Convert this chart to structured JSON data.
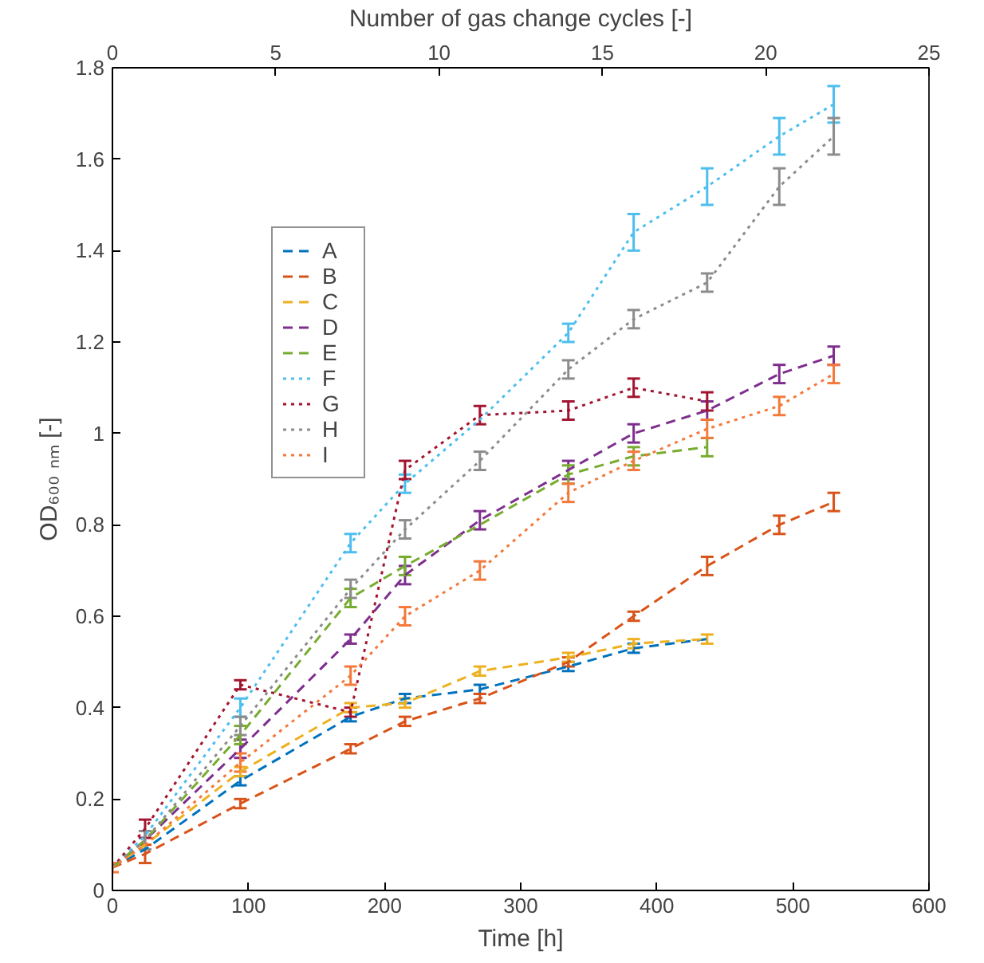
{
  "chart_data": {
    "type": "line",
    "xlabel": "Time [h]",
    "ylabel": "OD₆₀₀ ₙₘ [-]",
    "x2label": "Number of gas change cycles [-]",
    "x": [
      0,
      24,
      94,
      175,
      215,
      270,
      335,
      383,
      437,
      490,
      530
    ],
    "xlim": [
      0,
      600
    ],
    "xticks": [
      0,
      100,
      200,
      300,
      400,
      500,
      600
    ],
    "x2lim": [
      0,
      25
    ],
    "x2ticks": [
      0,
      5,
      10,
      15,
      20,
      25
    ],
    "ylim": [
      0,
      1.8
    ],
    "yticks": [
      0,
      0.2,
      0.4,
      0.6,
      0.8,
      1,
      1.2,
      1.4,
      1.6,
      1.8
    ],
    "grid": false,
    "legend": "top left",
    "marker": "none",
    "series": [
      {
        "name": "A",
        "color": "#0072bd",
        "line_style": "dashed",
        "values": [
          0.05,
          0.09,
          0.24,
          0.38,
          0.42,
          0.44,
          0.49,
          0.53,
          0.55,
          null,
          null
        ],
        "errors": [
          null,
          null,
          0.01,
          0.01,
          0.01,
          0.01,
          0.01,
          0.01,
          null,
          null,
          null
        ]
      },
      {
        "name": "B",
        "color": "#d95319",
        "line_style": "dashed",
        "values": [
          0.05,
          0.08,
          0.19,
          0.31,
          0.37,
          0.42,
          0.5,
          0.6,
          0.71,
          0.8,
          0.85
        ],
        "errors": [
          null,
          0.02,
          0.01,
          0.01,
          0.01,
          0.01,
          0.01,
          0.01,
          0.02,
          0.02,
          0.02
        ]
      },
      {
        "name": "C",
        "color": "#edb120",
        "line_style": "dashed",
        "values": [
          0.05,
          0.1,
          0.26,
          0.4,
          0.41,
          0.48,
          0.51,
          0.54,
          0.55,
          null,
          null
        ],
        "errors": [
          null,
          null,
          0.01,
          0.01,
          0.01,
          0.01,
          0.01,
          0.01,
          0.01,
          null,
          null
        ]
      },
      {
        "name": "D",
        "color": "#7e2f8e",
        "line_style": "dashed",
        "values": [
          0.05,
          0.11,
          0.31,
          0.55,
          0.69,
          0.81,
          0.92,
          1.0,
          1.05,
          1.13,
          1.17
        ],
        "errors": [
          null,
          null,
          0.02,
          0.01,
          0.02,
          0.02,
          0.02,
          0.02,
          0.02,
          0.02,
          0.02
        ]
      },
      {
        "name": "E",
        "color": "#77ac30",
        "line_style": "dashed",
        "values": [
          0.05,
          0.11,
          0.34,
          0.64,
          0.71,
          0.8,
          0.91,
          0.95,
          0.97,
          null,
          null
        ],
        "errors": [
          null,
          null,
          0.02,
          0.02,
          0.02,
          null,
          0.02,
          0.02,
          0.02,
          null,
          null
        ]
      },
      {
        "name": "F",
        "color": "#4dbeee",
        "line_style": "dotted",
        "values": [
          0.05,
          0.12,
          0.4,
          0.76,
          0.89,
          1.03,
          1.22,
          1.44,
          1.54,
          1.65,
          1.72
        ],
        "errors": [
          null,
          null,
          0.02,
          0.02,
          0.02,
          null,
          0.02,
          0.04,
          0.04,
          0.04,
          0.04
        ]
      },
      {
        "name": "G",
        "color": "#a2142f",
        "line_style": "dotted",
        "values": [
          0.05,
          0.135,
          0.45,
          0.39,
          0.92,
          1.04,
          1.05,
          1.1,
          1.07,
          null,
          null
        ],
        "errors": [
          null,
          0.02,
          0.01,
          0.01,
          0.02,
          0.02,
          0.02,
          0.02,
          0.02,
          null,
          null
        ]
      },
      {
        "name": "H",
        "color": "#8c8c8c",
        "line_style": "dotted",
        "values": [
          0.05,
          0.11,
          0.36,
          0.66,
          0.79,
          0.94,
          1.14,
          1.25,
          1.33,
          1.54,
          1.65
        ],
        "errors": [
          null,
          0.02,
          0.02,
          0.02,
          0.02,
          0.02,
          0.02,
          0.02,
          0.02,
          0.04,
          0.04
        ]
      },
      {
        "name": "I",
        "color": "#f4793b",
        "line_style": "dotted",
        "values": [
          0.05,
          0.1,
          0.28,
          0.47,
          0.6,
          0.7,
          0.87,
          0.94,
          1.01,
          1.06,
          1.13
        ],
        "errors": [
          0.01,
          null,
          0.02,
          0.02,
          0.02,
          0.02,
          0.02,
          0.02,
          0.02,
          0.02,
          0.02
        ]
      }
    ]
  }
}
